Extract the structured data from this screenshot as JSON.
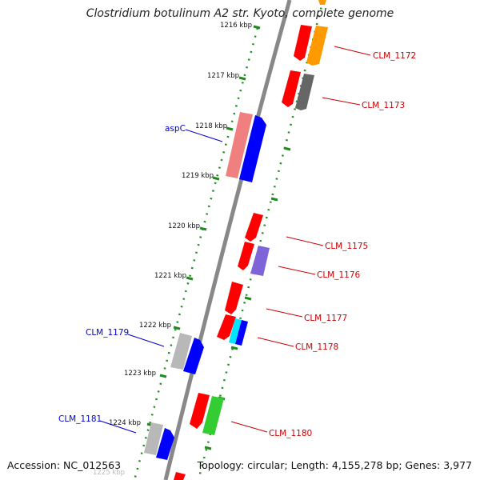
{
  "title": "Clostridium botulinum A2 str. Kyoto, complete genome",
  "accession": "Accession: NC_012563",
  "summary": "Topology: circular; Length: 4,155,278 bp; Genes: 3,977",
  "colors": {
    "backbone": "#888888",
    "ruler": "#1f8a1f",
    "label_red": "#cc0000",
    "label_blue": "#0000cc",
    "gene_red": "#ff0000",
    "gene_orange": "#ff9900",
    "gene_darkgray": "#666666",
    "gene_pink": "#f08080",
    "gene_blue": "#0000ff",
    "gene_purple": "#7f63d8",
    "gene_cyan": "#00e5ff",
    "gene_silver": "#b8b8b8",
    "gene_green": "#33cc33"
  },
  "ruler_labels": [
    "1216 kbp",
    "1217 kbp",
    "1218 kbp",
    "1219 kbp",
    "1220 kbp",
    "1221 kbp",
    "1222 kbp",
    "1223 kbp",
    "1224 kbp",
    "1225 kbp"
  ],
  "gene_labels": [
    {
      "text": "CLM_1172",
      "color": "#cc0000"
    },
    {
      "text": "CLM_1173",
      "color": "#cc0000"
    },
    {
      "text": "aspC",
      "color": "#0000cc"
    },
    {
      "text": "CLM_1175",
      "color": "#cc0000"
    },
    {
      "text": "CLM_1176",
      "color": "#cc0000"
    },
    {
      "text": "CLM_1177",
      "color": "#cc0000"
    },
    {
      "text": "CLM_1178",
      "color": "#cc0000"
    },
    {
      "text": "CLM_1179",
      "color": "#0000cc"
    },
    {
      "text": "CLM_1180",
      "color": "#cc0000"
    },
    {
      "text": "CLM_1181",
      "color": "#0000cc"
    }
  ]
}
